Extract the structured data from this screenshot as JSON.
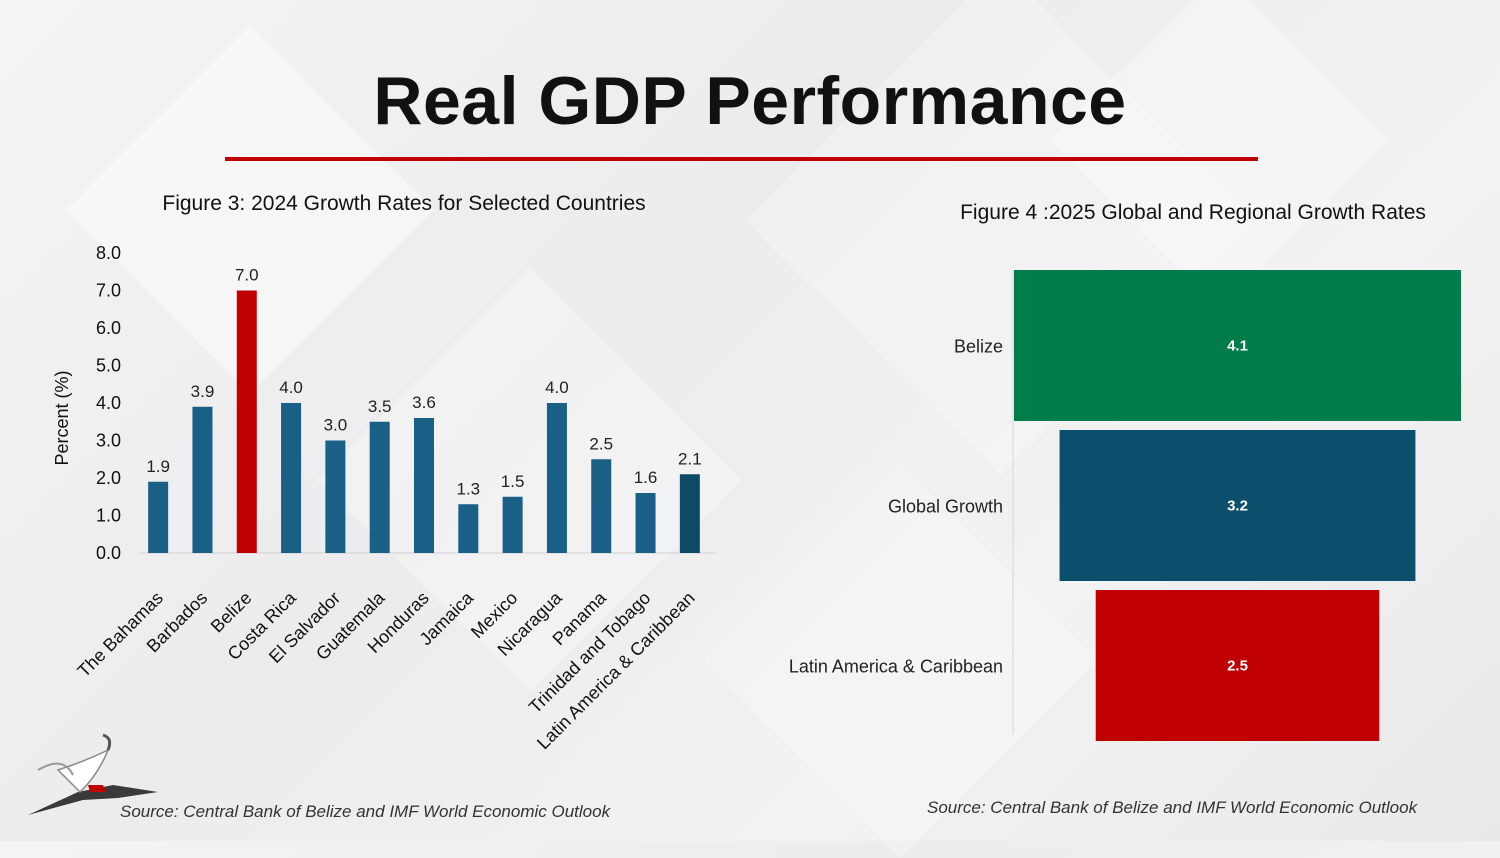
{
  "slide": {
    "title": "Real GDP Performance"
  },
  "colors": {
    "accent_red": "#c00000",
    "bar_blue": "#1a5f86",
    "bar_dark": "#0d4a66",
    "green": "#007d4a",
    "teal": "#0b4f6c"
  },
  "chart_data": [
    {
      "type": "bar",
      "title": "Figure 3: 2024 Growth Rates for Selected Countries",
      "ylabel": "Percent (%)",
      "ylim": [
        0,
        8
      ],
      "yticks": [
        "0.0",
        "1.0",
        "2.0",
        "3.0",
        "4.0",
        "5.0",
        "6.0",
        "7.0",
        "8.0"
      ],
      "categories": [
        "The Bahamas",
        "Barbados",
        "Belize",
        "Costa Rica",
        "El Salvador",
        "Guatemala",
        "Honduras",
        "Jamaica",
        "Mexico",
        "Nicaragua",
        "Panama",
        "Trinidad and Tobago",
        "Latin America & Caribbean"
      ],
      "values": [
        1.9,
        3.9,
        7.0,
        4.0,
        3.0,
        3.5,
        3.6,
        1.3,
        1.5,
        4.0,
        2.5,
        1.6,
        2.1
      ],
      "data_labels": [
        "1.9",
        "3.9",
        "7.0",
        "4.0",
        "3.0",
        "3.5",
        "3.6",
        "1.3",
        "1.5",
        "4.0",
        "2.5",
        "1.6",
        "2.1"
      ],
      "highlight": "Belize",
      "source": "Source: Central Bank of Belize and IMF World Economic Outlook"
    },
    {
      "type": "bar",
      "orientation": "horizontal-funnel",
      "title": "Figure 4 :2025 Global and Regional Growth Rates",
      "categories": [
        "Belize",
        "Global Growth",
        "Latin America & Caribbean"
      ],
      "values": [
        4.1,
        3.2,
        2.5
      ],
      "data_labels": [
        "4.1",
        "3.2",
        "2.5"
      ],
      "colors": [
        "#007d4a",
        "#0b4f6c",
        "#c00000"
      ],
      "source": "Source: Central Bank of Belize and IMF World Economic Outlook"
    }
  ]
}
